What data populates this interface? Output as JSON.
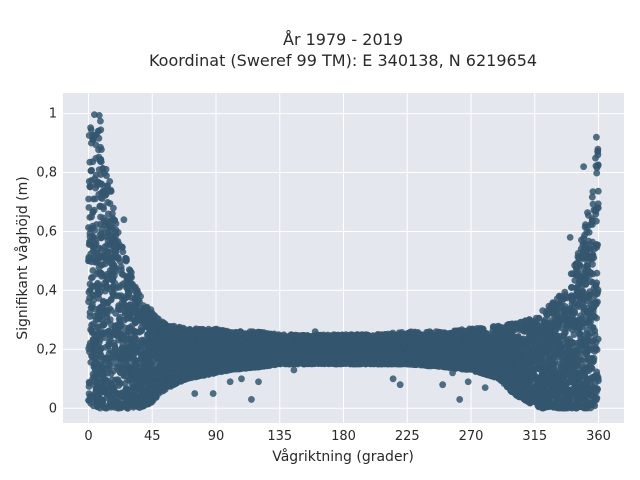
{
  "chart_data": {
    "type": "scatter",
    "title_line1": "År 1979 - 2019",
    "title_line2": "Koordinat (Sweref 99 TM): E 340138, N 6219654",
    "xlabel": "Vågriktning (grader)",
    "ylabel": "Signifikant våghöjd (m)",
    "xlim": [
      -18,
      378
    ],
    "ylim": [
      -0.05,
      1.07
    ],
    "x_ticks": [
      0,
      45,
      90,
      135,
      180,
      225,
      270,
      315,
      360
    ],
    "x_tick_labels": [
      "0",
      "45",
      "90",
      "135",
      "180",
      "225",
      "270",
      "315",
      "360"
    ],
    "y_ticks": [
      0,
      0.2,
      0.4,
      0.6,
      0.8,
      1
    ],
    "y_tick_labels": [
      "0",
      "0,2",
      "0,4",
      "0,6",
      "0,8",
      "1"
    ],
    "grid": true,
    "colors": {
      "background": "#e5e7ef",
      "grid": "#ffffff",
      "marker": "#34566e"
    },
    "envelope": {
      "x": [
        0,
        2,
        5,
        8,
        10,
        15,
        20,
        25,
        30,
        35,
        40,
        45,
        50,
        60,
        70,
        80,
        90,
        100,
        120,
        135,
        150,
        180,
        200,
        225,
        250,
        270,
        290,
        300,
        310,
        315,
        320,
        325,
        330,
        335,
        340,
        345,
        350,
        355,
        358,
        360
      ],
      "upper": [
        0.95,
        0.98,
        1.02,
        1.03,
        0.85,
        0.77,
        0.62,
        0.55,
        0.47,
        0.4,
        0.37,
        0.33,
        0.3,
        0.28,
        0.27,
        0.27,
        0.27,
        0.26,
        0.26,
        0.25,
        0.25,
        0.25,
        0.25,
        0.26,
        0.26,
        0.27,
        0.28,
        0.29,
        0.3,
        0.31,
        0.33,
        0.35,
        0.37,
        0.4,
        0.45,
        0.52,
        0.62,
        0.72,
        0.86,
        0.9
      ],
      "lower": [
        0.02,
        0.01,
        0.0,
        0.0,
        0.0,
        0.0,
        0.0,
        0.0,
        0.0,
        0.0,
        0.01,
        0.02,
        0.05,
        0.08,
        0.1,
        0.11,
        0.12,
        0.13,
        0.14,
        0.15,
        0.15,
        0.15,
        0.15,
        0.15,
        0.14,
        0.13,
        0.1,
        0.05,
        0.02,
        0.01,
        0.0,
        0.0,
        0.0,
        0.0,
        0.0,
        0.0,
        0.0,
        0.0,
        0.01,
        0.02
      ]
    },
    "outliers": [
      {
        "x": 115,
        "y": 0.03
      },
      {
        "x": 100,
        "y": 0.09
      },
      {
        "x": 108,
        "y": 0.1
      },
      {
        "x": 120,
        "y": 0.09
      },
      {
        "x": 140,
        "y": 0.19
      },
      {
        "x": 145,
        "y": 0.13
      },
      {
        "x": 152,
        "y": 0.17
      },
      {
        "x": 165,
        "y": 0.19
      },
      {
        "x": 160,
        "y": 0.26
      },
      {
        "x": 185,
        "y": 0.24
      },
      {
        "x": 215,
        "y": 0.1
      },
      {
        "x": 220,
        "y": 0.08
      },
      {
        "x": 244,
        "y": 0.17
      },
      {
        "x": 250,
        "y": 0.08
      },
      {
        "x": 257,
        "y": 0.12
      },
      {
        "x": 262,
        "y": 0.03
      },
      {
        "x": 268,
        "y": 0.09
      },
      {
        "x": 52,
        "y": 0.07
      },
      {
        "x": 58,
        "y": 0.1
      },
      {
        "x": 75,
        "y": 0.05
      },
      {
        "x": 88,
        "y": 0.05
      },
      {
        "x": 132,
        "y": 0.2
      },
      {
        "x": 205,
        "y": 0.25
      },
      {
        "x": 280,
        "y": 0.07
      },
      {
        "x": 0.5,
        "y": 0.77
      },
      {
        "x": 2,
        "y": 0.9
      },
      {
        "x": 15,
        "y": 0.77
      },
      {
        "x": 349.5,
        "y": 0.82
      },
      {
        "x": 358.5,
        "y": 0.92
      },
      {
        "x": 25,
        "y": 0.64
      },
      {
        "x": 340,
        "y": 0.58
      }
    ]
  }
}
